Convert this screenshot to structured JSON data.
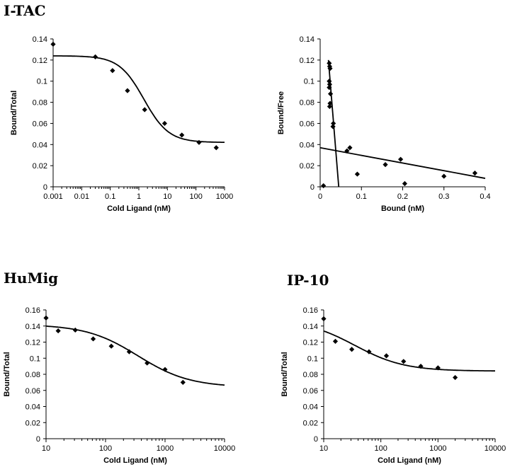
{
  "chart_data": [
    {
      "id": "itac-competition",
      "type": "scatter",
      "title": "I-TAC",
      "xlabel": "Cold Ligand (nM)",
      "ylabel": "Bound/Total",
      "xscale": "log",
      "xlim": [
        0.001,
        1000
      ],
      "ylim": [
        0,
        0.14
      ],
      "xticks": [
        0.001,
        0.01,
        0.1,
        1,
        10,
        100,
        1000
      ],
      "xtick_labels": [
        "0.001",
        "0.01",
        "0.1",
        "1",
        "10",
        "100",
        "1000"
      ],
      "yticks": [
        0,
        0.02,
        0.04,
        0.06,
        0.08,
        0.1,
        0.12,
        0.14
      ],
      "ytick_labels": [
        "0",
        "0.02",
        "0.04",
        "0.06",
        "0.08",
        "0.1",
        "0.12",
        "0.14"
      ],
      "points": [
        {
          "x": 0.001,
          "y": 0.135
        },
        {
          "x": 0.03,
          "y": 0.123
        },
        {
          "x": 0.12,
          "y": 0.11
        },
        {
          "x": 0.4,
          "y": 0.091
        },
        {
          "x": 1.6,
          "y": 0.073
        },
        {
          "x": 8,
          "y": 0.06
        },
        {
          "x": 32,
          "y": 0.049
        },
        {
          "x": 128,
          "y": 0.042
        },
        {
          "x": 512,
          "y": 0.037
        }
      ],
      "fit": {
        "model": "sigmoid",
        "top": 0.124,
        "bottom": 0.042,
        "ic50": 1.5,
        "hill": 1
      }
    },
    {
      "id": "itac-scatchard",
      "type": "scatter",
      "title": "",
      "xlabel": "Bound (nM)",
      "ylabel": "Bound/Free",
      "xscale": "linear",
      "xlim": [
        0,
        0.4
      ],
      "ylim": [
        0,
        0.14
      ],
      "xticks": [
        0,
        0.1,
        0.2,
        0.3,
        0.4
      ],
      "xtick_labels": [
        "0",
        "0.1",
        "0.2",
        "0.3",
        "0.4"
      ],
      "yticks": [
        0,
        0.02,
        0.04,
        0.06,
        0.08,
        0.1,
        0.12,
        0.14
      ],
      "ytick_labels": [
        "0",
        "0.02",
        "0.04",
        "0.06",
        "0.08",
        "0.1",
        "0.12",
        "0.14"
      ],
      "points": [
        {
          "x": 0.022,
          "y": 0.117
        },
        {
          "x": 0.023,
          "y": 0.114
        },
        {
          "x": 0.024,
          "y": 0.112
        },
        {
          "x": 0.022,
          "y": 0.1
        },
        {
          "x": 0.023,
          "y": 0.097
        },
        {
          "x": 0.022,
          "y": 0.094
        },
        {
          "x": 0.025,
          "y": 0.088
        },
        {
          "x": 0.024,
          "y": 0.079
        },
        {
          "x": 0.023,
          "y": 0.076
        },
        {
          "x": 0.032,
          "y": 0.06
        },
        {
          "x": 0.031,
          "y": 0.057
        },
        {
          "x": 0.065,
          "y": 0.034
        },
        {
          "x": 0.072,
          "y": 0.037
        },
        {
          "x": 0.09,
          "y": 0.012
        },
        {
          "x": 0.158,
          "y": 0.021
        },
        {
          "x": 0.195,
          "y": 0.026
        },
        {
          "x": 0.205,
          "y": 0.003
        },
        {
          "x": 0.3,
          "y": 0.01
        },
        {
          "x": 0.375,
          "y": 0.013
        },
        {
          "x": 0.008,
          "y": 0.001
        }
      ],
      "lines": [
        {
          "x1": 0.02,
          "y1": 0.12,
          "x2": 0.045,
          "y2": 0
        },
        {
          "x1": 0,
          "y1": 0.037,
          "x2": 0.4,
          "y2": 0.008
        }
      ]
    },
    {
      "id": "humig-competition",
      "type": "scatter",
      "title": "HuMig",
      "xlabel": "Cold Ligand (nM)",
      "ylabel": "Bound/Total",
      "xscale": "log",
      "xlim": [
        10,
        10000
      ],
      "ylim": [
        0,
        0.16
      ],
      "xticks": [
        10,
        100,
        1000,
        10000
      ],
      "xtick_labels": [
        "10",
        "100",
        "1000",
        "10000"
      ],
      "yticks": [
        0,
        0.02,
        0.04,
        0.06,
        0.08,
        0.1,
        0.12,
        0.14,
        0.16
      ],
      "ytick_labels": [
        "0",
        "0.02",
        "0.04",
        "0.06",
        "0.08",
        "0.1",
        "0.12",
        "0.14",
        "0.16"
      ],
      "points": [
        {
          "x": 10,
          "y": 0.15
        },
        {
          "x": 16,
          "y": 0.134
        },
        {
          "x": 31,
          "y": 0.135
        },
        {
          "x": 62,
          "y": 0.124
        },
        {
          "x": 125,
          "y": 0.115
        },
        {
          "x": 250,
          "y": 0.108
        },
        {
          "x": 500,
          "y": 0.094
        },
        {
          "x": 1000,
          "y": 0.086
        },
        {
          "x": 2000,
          "y": 0.07
        }
      ],
      "fit": {
        "model": "sigmoid",
        "top": 0.142,
        "bottom": 0.064,
        "ic50": 350,
        "hill": 1
      }
    },
    {
      "id": "ip10-competition",
      "type": "scatter",
      "title": "IP-10",
      "xlabel": "Cold Ligand (nM)",
      "ylabel": "Bound/Total",
      "xscale": "log",
      "xlim": [
        10,
        10000
      ],
      "ylim": [
        0,
        0.16
      ],
      "xticks": [
        10,
        100,
        1000,
        10000
      ],
      "xtick_labels": [
        "10",
        "100",
        "1000",
        "10000"
      ],
      "yticks": [
        0,
        0.02,
        0.04,
        0.06,
        0.08,
        0.1,
        0.12,
        0.14,
        0.16
      ],
      "ytick_labels": [
        "0",
        "0.02",
        "0.04",
        "0.06",
        "0.08",
        "0.1",
        "0.12",
        "0.14",
        "0.16"
      ],
      "points": [
        {
          "x": 10,
          "y": 0.149
        },
        {
          "x": 16,
          "y": 0.121
        },
        {
          "x": 31,
          "y": 0.111
        },
        {
          "x": 62,
          "y": 0.108
        },
        {
          "x": 125,
          "y": 0.103
        },
        {
          "x": 250,
          "y": 0.096
        },
        {
          "x": 500,
          "y": 0.09
        },
        {
          "x": 1000,
          "y": 0.088
        },
        {
          "x": 2000,
          "y": 0.076
        }
      ],
      "fit": {
        "model": "sigmoid",
        "top": 0.148,
        "bottom": 0.084,
        "ic50": 35,
        "hill": 1
      }
    }
  ]
}
